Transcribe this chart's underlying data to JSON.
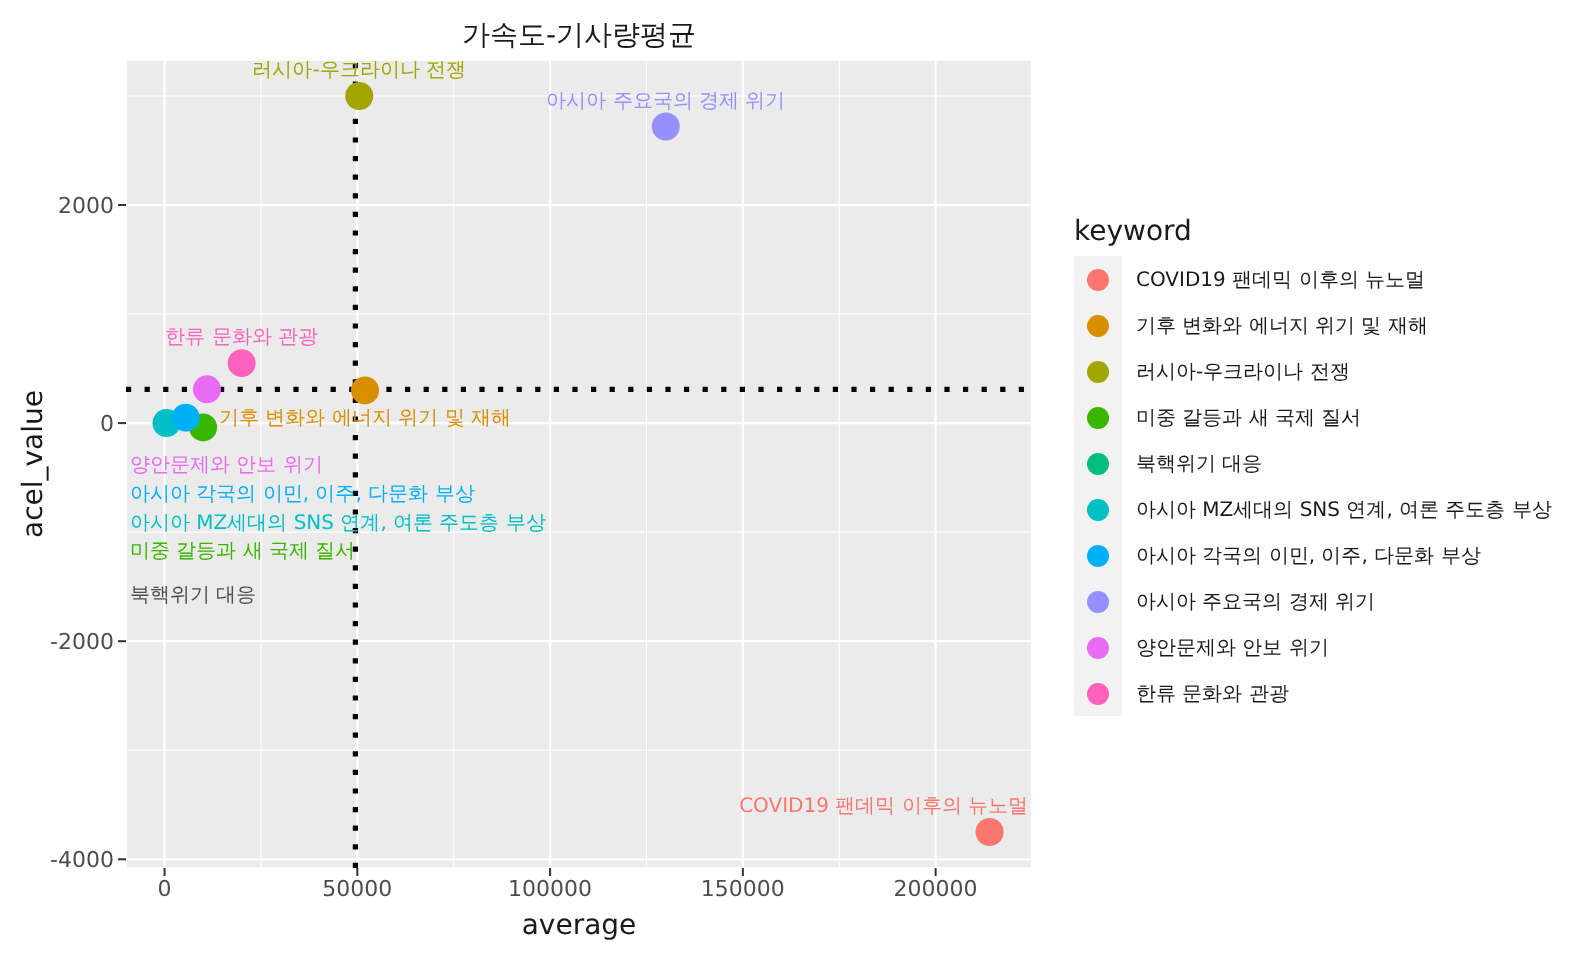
{
  "chart_data": {
    "type": "scatter",
    "title": "가속도-기사량평균",
    "xlabel": "average",
    "ylabel": "acel_value",
    "legend_title": "keyword",
    "series": [
      {
        "name": "COVID19 팬데믹 이후의 뉴노멀",
        "color": "#f8766d",
        "x": [
          214000
        ],
        "values": [
          -3750
        ]
      },
      {
        "name": "기후 변화와 에너지 위기 및 재해",
        "color": "#d89000",
        "x": [
          52000
        ],
        "values": [
          300
        ]
      },
      {
        "name": "러시아-우크라이나 전쟁",
        "color": "#a3a500",
        "x": [
          50500
        ],
        "values": [
          3000
        ]
      },
      {
        "name": "미중 갈등과 새 국제 질서",
        "color": "#39b600",
        "x": [
          10000
        ],
        "values": [
          -40
        ]
      },
      {
        "name": "북핵위기 대응",
        "color": "#00bf7d",
        "x": [
          null
        ],
        "values": [
          null
        ]
      },
      {
        "name": "아시아 MZ세대의 SNS 연계, 여론 주도층 부상",
        "color": "#00bfc4",
        "x": [
          500
        ],
        "values": [
          0
        ]
      },
      {
        "name": "아시아 각국의 이민, 이주, 다문화 부상",
        "color": "#00b0f6",
        "x": [
          5500
        ],
        "values": [
          50
        ]
      },
      {
        "name": "아시아 주요국의 경제 위기",
        "color": "#9590ff",
        "x": [
          130000
        ],
        "values": [
          2720
        ]
      },
      {
        "name": "양안문제와 안보 위기",
        "color": "#e76bf3",
        "x": [
          11000
        ],
        "values": [
          310
        ]
      },
      {
        "name": "한류 문화와 관광",
        "color": "#ff62bc",
        "x": [
          20000
        ],
        "values": [
          550
        ]
      }
    ],
    "xlim": [
      -10000,
      225000
    ],
    "xticks": [
      0,
      50000,
      100000,
      150000,
      200000
    ],
    "ylim": [
      -4080,
      3330
    ],
    "yticks": [
      -4000,
      -2000,
      0,
      2000
    ],
    "ref_lines": [
      {
        "axis": "x",
        "value": 49500,
        "color": "#000000",
        "line_style": "dotted"
      },
      {
        "axis": "y",
        "value": 310,
        "color": "#000000",
        "line_style": "dotted"
      }
    ],
    "annotations": [
      "북핵위기 대응"
    ],
    "grid": true,
    "legend": "right",
    "marker": "circle"
  }
}
